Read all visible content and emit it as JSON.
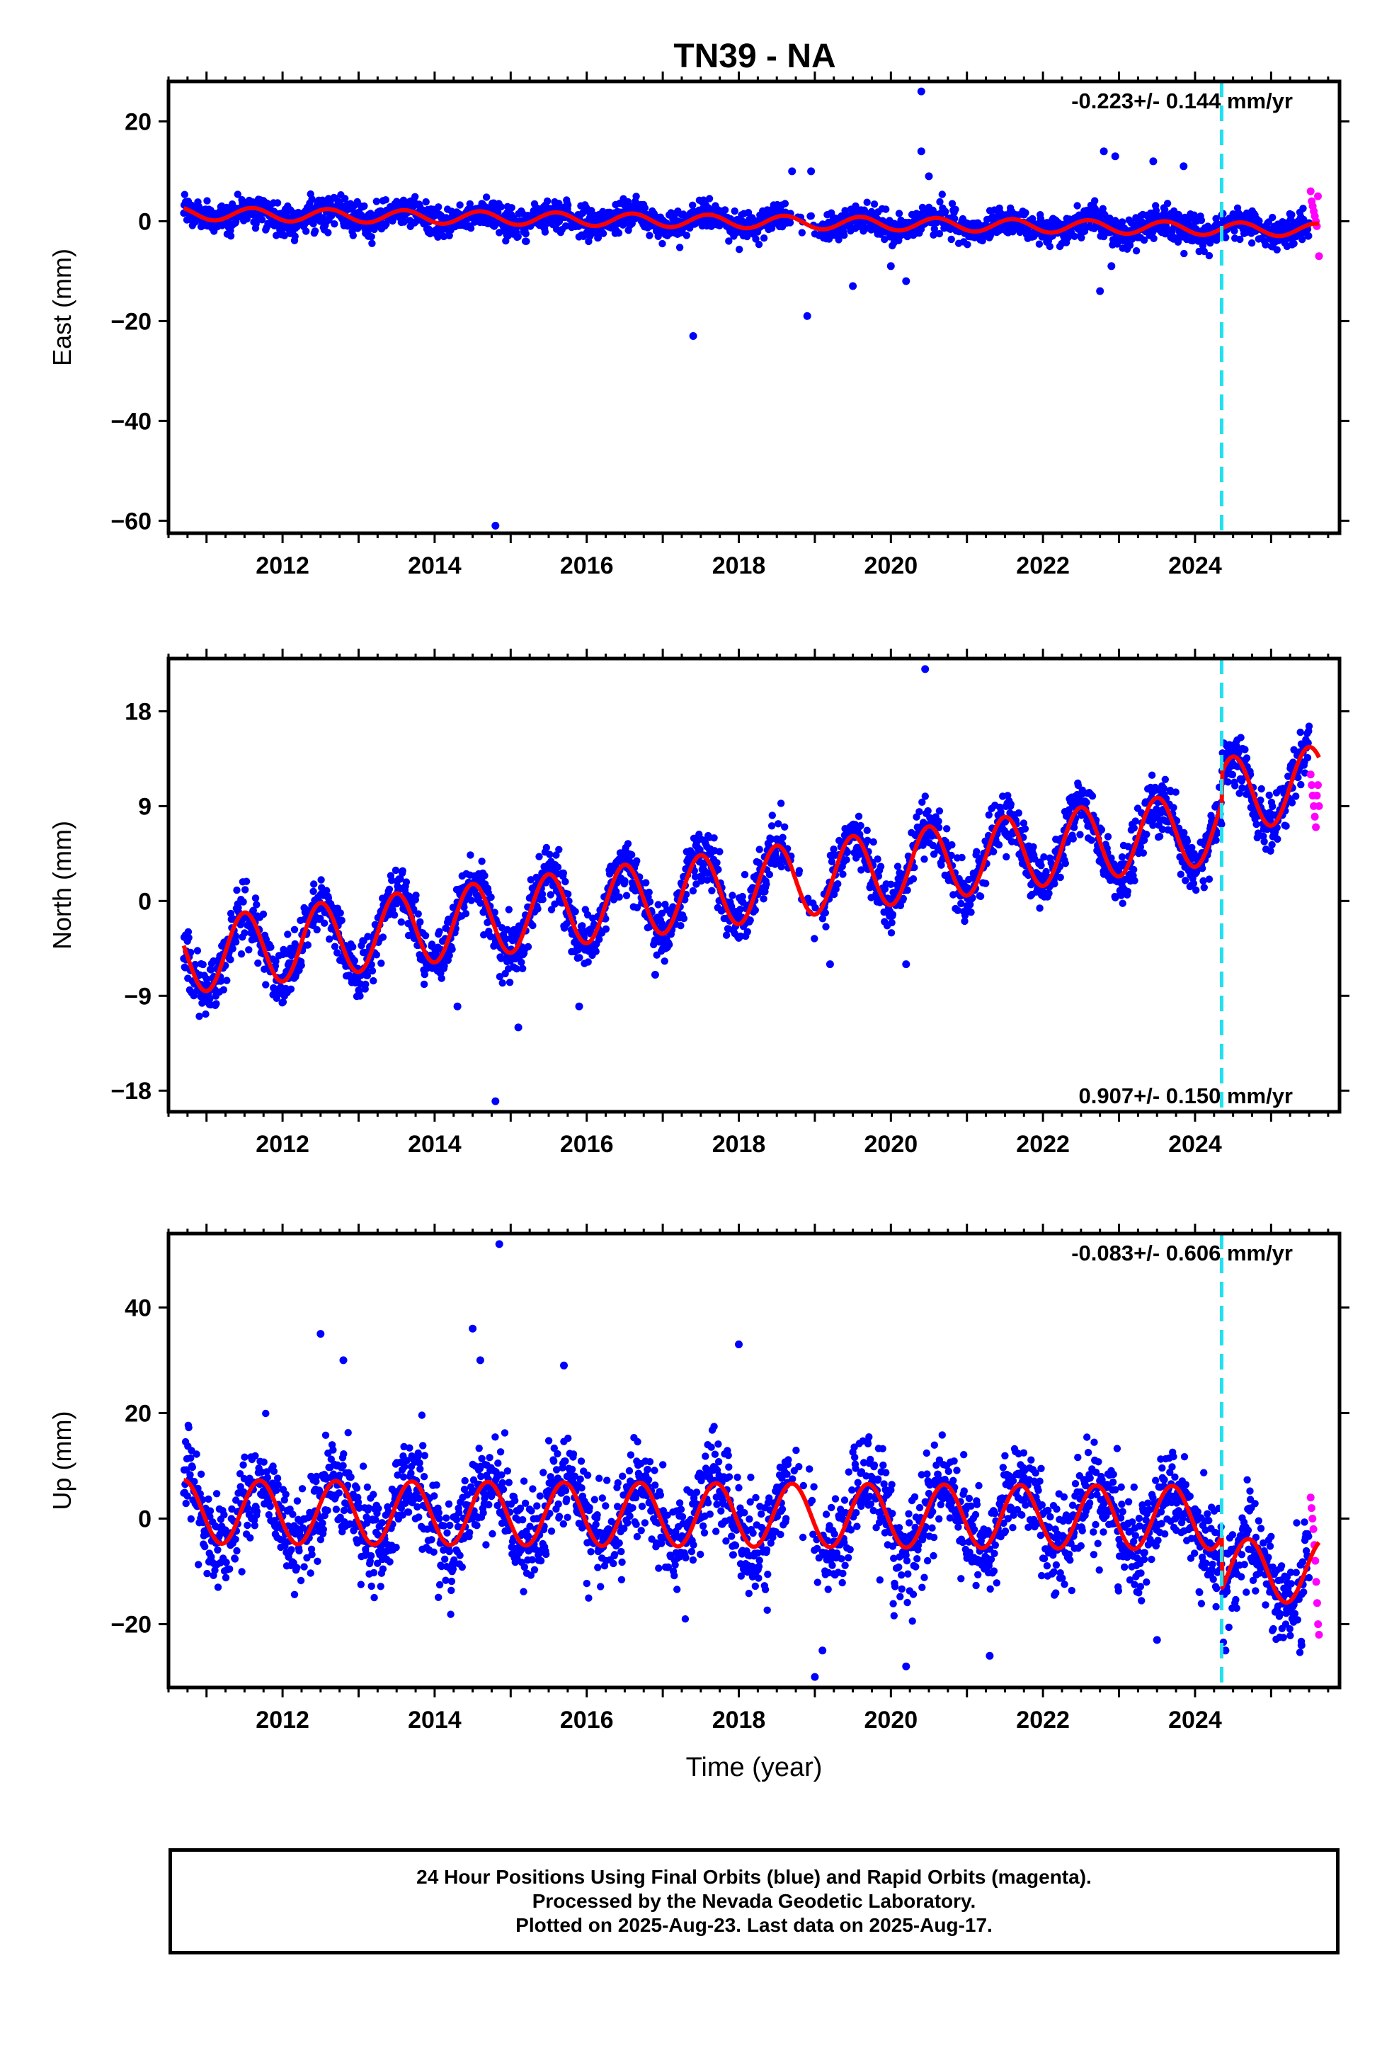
{
  "title": "TN39 - NA",
  "colors": {
    "final_points": "#0000ff",
    "rapid_points": "#ff00ff",
    "model": "#ff0000",
    "event_line": "#22e0f0",
    "frame": "#000000"
  },
  "chart_data": [
    {
      "type": "scatter",
      "component": "east",
      "ylabel": "East (mm)",
      "xlabel": "",
      "xlim": [
        2010.5,
        2025.9
      ],
      "ylim": [
        -62.5,
        28
      ],
      "xticks": [
        2012,
        2014,
        2016,
        2018,
        2020,
        2022,
        2024
      ],
      "xtick_labels": [
        "2012",
        "2014",
        "2016",
        "2018",
        "2020",
        "2022",
        "2024"
      ],
      "yticks": [
        20,
        0,
        -20,
        -40,
        -60
      ],
      "ytick_labels": [
        "20",
        "0",
        "−20",
        "−40",
        "−60"
      ],
      "rate": "-0.223+/- 0.144 mm/yr",
      "rate_position": "top-right",
      "event_line_x": 2024.35,
      "model": {
        "intercept": 1.6,
        "slope": -0.223,
        "annual_amp": 1.3,
        "annual_phase": 0.6,
        "step_year": 2024.35,
        "step": 0.0
      },
      "daily_scatter": {
        "start": 2010.7,
        "end": 2025.5,
        "noise": 1.5
      },
      "rapid_points": {
        "start": 2025.52,
        "end": 2025.63,
        "values": [
          6,
          4,
          3,
          2,
          1,
          0,
          -1,
          5,
          -7
        ]
      },
      "outliers": [
        {
          "x": 2014.8,
          "y": -61
        },
        {
          "x": 2017.4,
          "y": -23
        },
        {
          "x": 2018.9,
          "y": -19
        },
        {
          "x": 2020.4,
          "y": 26
        },
        {
          "x": 2020.4,
          "y": 14
        },
        {
          "x": 2018.7,
          "y": 10
        },
        {
          "x": 2018.95,
          "y": 10
        },
        {
          "x": 2022.8,
          "y": 14
        },
        {
          "x": 2022.95,
          "y": 13
        },
        {
          "x": 2023.45,
          "y": 12
        },
        {
          "x": 2023.85,
          "y": 11
        },
        {
          "x": 2020.5,
          "y": 9
        },
        {
          "x": 2019.5,
          "y": -13
        },
        {
          "x": 2020.2,
          "y": -12
        },
        {
          "x": 2022.75,
          "y": -14
        },
        {
          "x": 2020.0,
          "y": -9
        },
        {
          "x": 2022.9,
          "y": -9
        }
      ]
    },
    {
      "type": "scatter",
      "component": "north",
      "ylabel": "North (mm)",
      "xlabel": "",
      "xlim": [
        2010.5,
        2025.9
      ],
      "ylim": [
        -20,
        23
      ],
      "xticks": [
        2012,
        2014,
        2016,
        2018,
        2020,
        2022,
        2024
      ],
      "xtick_labels": [
        "2012",
        "2014",
        "2016",
        "2018",
        "2020",
        "2022",
        "2024"
      ],
      "yticks": [
        18,
        9,
        0,
        -9,
        -18
      ],
      "ytick_labels": [
        "18",
        "9",
        "0",
        "−9",
        "−18"
      ],
      "rate": "0.907+/- 0.150 mm/yr",
      "rate_position": "bottom-right",
      "event_line_x": 2024.35,
      "model": {
        "intercept": -5.5,
        "slope": 0.907,
        "annual_amp": 3.5,
        "annual_phase": 0.5,
        "step_year": 2024.35,
        "step": 3.0
      },
      "daily_scatter": {
        "start": 2010.7,
        "end": 2025.5,
        "noise": 1.3
      },
      "rapid_points": {
        "start": 2025.52,
        "end": 2025.63,
        "values": [
          12,
          11,
          10,
          9,
          8,
          7,
          10,
          11,
          9
        ]
      },
      "outliers": [
        {
          "x": 2014.8,
          "y": -19
        },
        {
          "x": 2015.1,
          "y": -12
        },
        {
          "x": 2014.3,
          "y": -10
        },
        {
          "x": 2020.45,
          "y": 22
        },
        {
          "x": 2016.9,
          "y": -7
        },
        {
          "x": 2019.2,
          "y": -6
        },
        {
          "x": 2020.2,
          "y": -6
        },
        {
          "x": 2015.9,
          "y": -10
        }
      ]
    },
    {
      "type": "scatter",
      "component": "up",
      "ylabel": "Up (mm)",
      "xlabel": "Time (year)",
      "xlim": [
        2010.5,
        2025.9
      ],
      "ylim": [
        -32,
        54
      ],
      "xticks": [
        2012,
        2014,
        2016,
        2018,
        2020,
        2022,
        2024
      ],
      "xtick_labels": [
        "2012",
        "2014",
        "2016",
        "2018",
        "2020",
        "2022",
        "2024"
      ],
      "yticks": [
        40,
        20,
        0,
        -20
      ],
      "ytick_labels": [
        "40",
        "20",
        "0",
        "−20"
      ],
      "rate": "-0.083+/- 0.606 mm/yr",
      "rate_position": "top-right",
      "event_line_x": 2024.35,
      "model": {
        "intercept": 1.3,
        "slope": -0.083,
        "annual_amp": 6.0,
        "annual_phase": 0.7,
        "step_year": 2024.35,
        "step": -10.0
      },
      "daily_scatter": {
        "start": 2010.7,
        "end": 2025.5,
        "noise": 4.5
      },
      "rapid_points": {
        "start": 2025.52,
        "end": 2025.63,
        "values": [
          4,
          2,
          0,
          -2,
          -5,
          -8,
          -12,
          -16,
          -20,
          -22
        ]
      },
      "outliers": [
        {
          "x": 2014.85,
          "y": 52
        },
        {
          "x": 2014.5,
          "y": 36
        },
        {
          "x": 2012.5,
          "y": 35
        },
        {
          "x": 2018.0,
          "y": 33
        },
        {
          "x": 2019.0,
          "y": -30
        },
        {
          "x": 2020.2,
          "y": -28
        },
        {
          "x": 2019.1,
          "y": -25
        },
        {
          "x": 2021.3,
          "y": -26
        },
        {
          "x": 2024.4,
          "y": -25
        },
        {
          "x": 2023.5,
          "y": -23
        },
        {
          "x": 2025.4,
          "y": -24
        },
        {
          "x": 2012.8,
          "y": 30
        },
        {
          "x": 2014.6,
          "y": 30
        },
        {
          "x": 2015.7,
          "y": 29
        }
      ]
    }
  ],
  "footer": {
    "line1": "24 Hour Positions Using Final Orbits (blue) and Rapid Orbits (magenta).",
    "line2": "Processed by the Nevada Geodetic Laboratory.",
    "line3": "Plotted on 2025-Aug-23. Last data on 2025-Aug-17."
  }
}
